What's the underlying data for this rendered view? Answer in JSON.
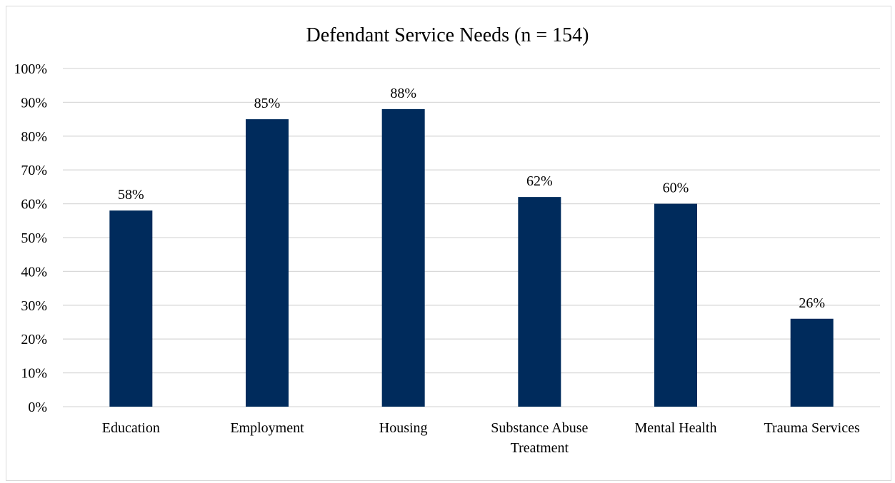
{
  "chart_data": {
    "type": "bar",
    "title": "Defendant Service Needs (n = 154)",
    "categories": [
      [
        "Education"
      ],
      [
        "Employment"
      ],
      [
        "Housing"
      ],
      [
        "Substance Abuse",
        "Treatment"
      ],
      [
        "Mental Health"
      ],
      [
        "Trauma Services"
      ]
    ],
    "values": [
      58,
      85,
      88,
      62,
      60,
      26
    ],
    "value_labels": [
      "58%",
      "85%",
      "88%",
      "62%",
      "60%",
      "26%"
    ],
    "yticks": [
      "0%",
      "10%",
      "20%",
      "30%",
      "40%",
      "50%",
      "60%",
      "70%",
      "80%",
      "90%",
      "100%"
    ],
    "ylim": [
      0,
      100
    ],
    "grid": true,
    "legend": "none",
    "bar_color": "#002b5c",
    "grid_color": "#d9d9d9"
  }
}
